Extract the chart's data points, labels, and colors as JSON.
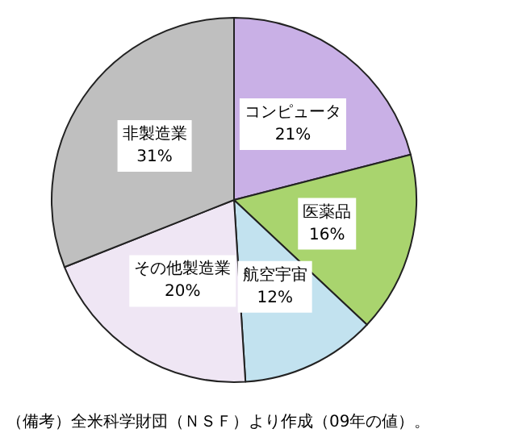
{
  "chart_data": {
    "type": "pie",
    "categories": [
      "コンピュータ",
      "医薬品",
      "航空宇宙",
      "その他製造業",
      "非製造業"
    ],
    "values": [
      21,
      16,
      12,
      20,
      31
    ],
    "value_labels": [
      "21%",
      "16%",
      "12%",
      "20%",
      "31%"
    ],
    "colors": [
      "#c9b0e6",
      "#a9d46e",
      "#c2e2ef",
      "#efe6f4",
      "#bfbfbf"
    ],
    "annotations": [
      "（備考）全米科学財団（ＮＳＦ）より作成（09年の値）。"
    ],
    "legend": false
  }
}
